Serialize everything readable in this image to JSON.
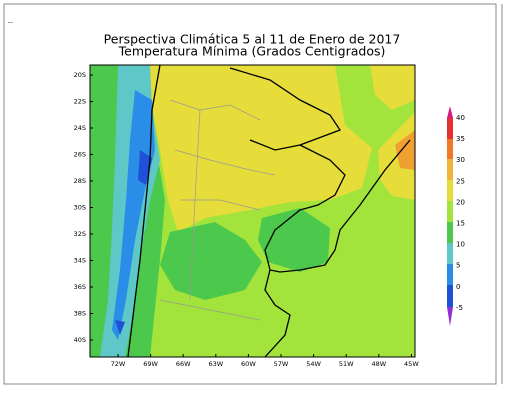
{
  "corner_mark": "--",
  "header": {
    "title": "Perspectiva Climática 5 al 11 de Enero de 2017",
    "subtitle": "Temperatura Mínima (Grados Centigrados)"
  },
  "map": {
    "latitude_labels": [
      "20S",
      "22S",
      "24S",
      "26S",
      "28S",
      "30S",
      "32S",
      "34S",
      "36S",
      "38S",
      "40S"
    ],
    "longitude_labels": [
      "72W",
      "69W",
      "66W",
      "63W",
      "60W",
      "57W",
      "54W",
      "51W",
      "48W",
      "45W"
    ]
  },
  "legend": {
    "labels": [
      "40",
      "35",
      "30",
      "25",
      "20",
      "15",
      "10",
      "5",
      "0",
      "-5"
    ]
  }
}
